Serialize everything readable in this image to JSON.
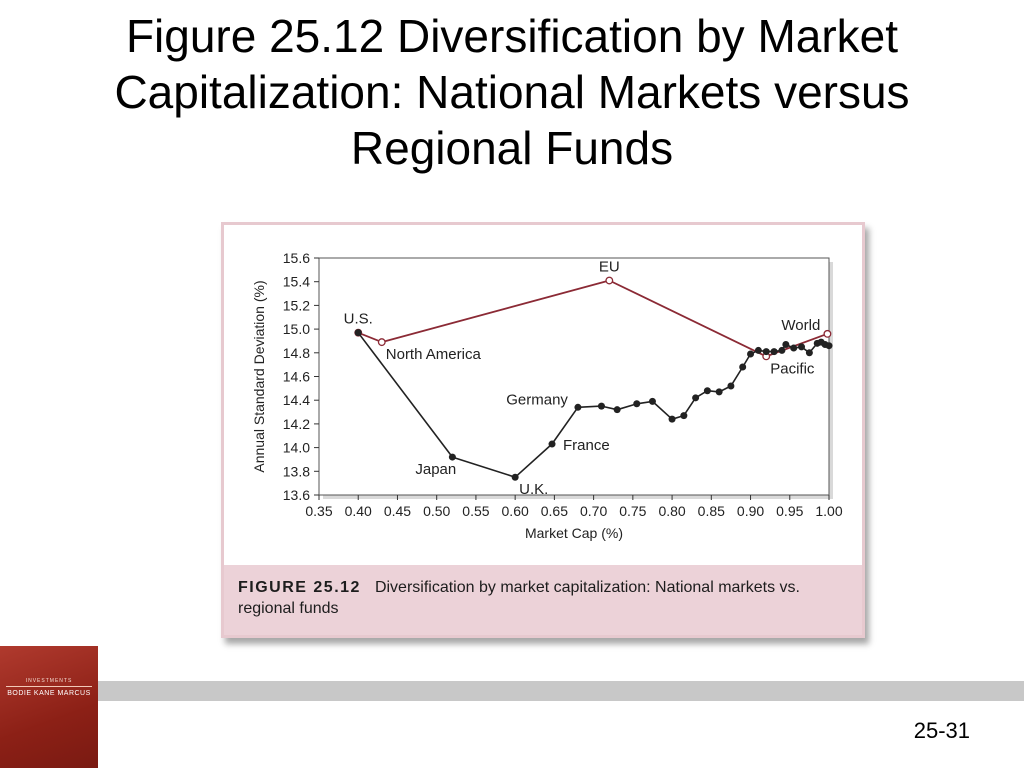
{
  "slide": {
    "title": "Figure 25.12 Diversification by Market Capitalization: National Markets versus Regional Funds",
    "page_number": "25-31",
    "logo": {
      "series": "INVESTMENTS",
      "authors": "BODIE KANE MARCUS"
    }
  },
  "caption": {
    "label": "FIGURE 25.12",
    "text": "Diversification by market capitalization: National markets vs. regional funds"
  },
  "chart_data": {
    "type": "line",
    "title": "",
    "xlabel": "Market Cap (%)",
    "ylabel": "Annual Standard Deviation (%)",
    "xlim": [
      0.35,
      1.0
    ],
    "ylim": [
      13.6,
      15.6
    ],
    "xticks": [
      "0.35",
      "0.40",
      "0.45",
      "0.50",
      "0.55",
      "0.60",
      "0.65",
      "0.70",
      "0.75",
      "0.80",
      "0.85",
      "0.90",
      "0.95",
      "1.00"
    ],
    "yticks": [
      "13.6",
      "13.8",
      "14.0",
      "14.2",
      "14.4",
      "14.6",
      "14.8",
      "15.0",
      "15.2",
      "15.4",
      "15.6"
    ],
    "grid": false,
    "series": [
      {
        "color": "#8b2a35",
        "marker": "open-circle",
        "points": [
          {
            "x": 0.4,
            "y": 14.97
          },
          {
            "x": 0.43,
            "y": 14.89
          },
          {
            "x": 0.72,
            "y": 15.41
          },
          {
            "x": 0.92,
            "y": 14.77
          },
          {
            "x": 0.998,
            "y": 14.96
          }
        ]
      },
      {
        "color": "#222222",
        "marker": "filled-circle",
        "points": [
          {
            "x": 0.4,
            "y": 14.97
          },
          {
            "x": 0.52,
            "y": 13.92
          },
          {
            "x": 0.6,
            "y": 13.75
          },
          {
            "x": 0.647,
            "y": 14.03
          },
          {
            "x": 0.68,
            "y": 14.34
          },
          {
            "x": 0.71,
            "y": 14.35
          },
          {
            "x": 0.73,
            "y": 14.32
          },
          {
            "x": 0.755,
            "y": 14.37
          },
          {
            "x": 0.775,
            "y": 14.39
          },
          {
            "x": 0.8,
            "y": 14.24
          },
          {
            "x": 0.815,
            "y": 14.27
          },
          {
            "x": 0.83,
            "y": 14.42
          },
          {
            "x": 0.845,
            "y": 14.48
          },
          {
            "x": 0.86,
            "y": 14.47
          },
          {
            "x": 0.875,
            "y": 14.52
          },
          {
            "x": 0.89,
            "y": 14.68
          },
          {
            "x": 0.9,
            "y": 14.79
          },
          {
            "x": 0.91,
            "y": 14.82
          },
          {
            "x": 0.92,
            "y": 14.81
          },
          {
            "x": 0.93,
            "y": 14.81
          },
          {
            "x": 0.94,
            "y": 14.82
          },
          {
            "x": 0.945,
            "y": 14.87
          },
          {
            "x": 0.955,
            "y": 14.84
          },
          {
            "x": 0.965,
            "y": 14.85
          },
          {
            "x": 0.975,
            "y": 14.8
          },
          {
            "x": 0.985,
            "y": 14.88
          },
          {
            "x": 0.99,
            "y": 14.89
          },
          {
            "x": 0.995,
            "y": 14.87
          },
          {
            "x": 1.0,
            "y": 14.86
          }
        ]
      }
    ],
    "annotations": [
      {
        "text": "U.S.",
        "x": 0.4,
        "y": 14.97,
        "anchor": "above"
      },
      {
        "text": "North America",
        "x": 0.43,
        "y": 14.89,
        "anchor": "below-right"
      },
      {
        "text": "EU",
        "x": 0.72,
        "y": 15.41,
        "anchor": "above"
      },
      {
        "text": "World",
        "x": 0.998,
        "y": 14.96,
        "anchor": "above-left"
      },
      {
        "text": "Pacific",
        "x": 0.92,
        "y": 14.77,
        "anchor": "below-right"
      },
      {
        "text": "Germany",
        "x": 0.68,
        "y": 14.34,
        "anchor": "left"
      },
      {
        "text": "France",
        "x": 0.647,
        "y": 14.03,
        "anchor": "right"
      },
      {
        "text": "Japan",
        "x": 0.52,
        "y": 13.92,
        "anchor": "below-left"
      },
      {
        "text": "U.K.",
        "x": 0.6,
        "y": 13.75,
        "anchor": "below-right"
      }
    ]
  }
}
